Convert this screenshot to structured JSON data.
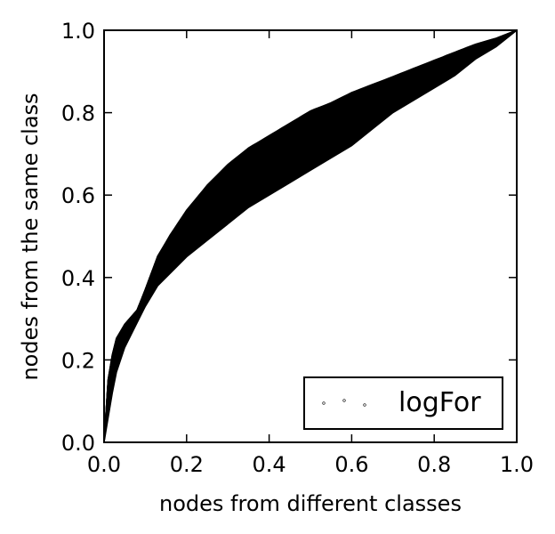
{
  "chart_data": {
    "type": "scatter",
    "title": "",
    "xlabel": "nodes from different classes",
    "ylabel": "nodes from the same class",
    "xlim": [
      0,
      1
    ],
    "ylim": [
      0,
      1
    ],
    "xticks": [
      "0.0",
      "0.2",
      "0.4",
      "0.6",
      "0.8",
      "1.0"
    ],
    "yticks": [
      "0.0",
      "0.2",
      "0.4",
      "0.6",
      "0.8",
      "1.0"
    ],
    "grid": false,
    "legend": {
      "placement": "lower-right",
      "entries": [
        "logFor"
      ]
    },
    "colors": {
      "series": "#000000",
      "axes": "#000000",
      "background": "#ffffff"
    },
    "series": [
      {
        "name": "logFor",
        "marker": "small-circle",
        "band_upper": [
          [
            0,
            0
          ],
          [
            0.01,
            0.15
          ],
          [
            0.02,
            0.21
          ],
          [
            0.03,
            0.25
          ],
          [
            0.05,
            0.285
          ],
          [
            0.08,
            0.32
          ],
          [
            0.1,
            0.37
          ],
          [
            0.13,
            0.45
          ],
          [
            0.16,
            0.5
          ],
          [
            0.2,
            0.56
          ],
          [
            0.25,
            0.62
          ],
          [
            0.3,
            0.67
          ],
          [
            0.35,
            0.71
          ],
          [
            0.4,
            0.74
          ],
          [
            0.45,
            0.77
          ],
          [
            0.5,
            0.8
          ],
          [
            0.55,
            0.82
          ],
          [
            0.6,
            0.845
          ],
          [
            0.65,
            0.865
          ],
          [
            0.7,
            0.885
          ],
          [
            0.75,
            0.905
          ],
          [
            0.8,
            0.925
          ],
          [
            0.85,
            0.945
          ],
          [
            0.9,
            0.965
          ],
          [
            0.95,
            0.98
          ],
          [
            1,
            1
          ]
        ],
        "band_lower": [
          [
            0,
            0
          ],
          [
            0.01,
            0.06
          ],
          [
            0.02,
            0.12
          ],
          [
            0.03,
            0.17
          ],
          [
            0.05,
            0.23
          ],
          [
            0.08,
            0.29
          ],
          [
            0.1,
            0.33
          ],
          [
            0.13,
            0.38
          ],
          [
            0.16,
            0.41
          ],
          [
            0.2,
            0.45
          ],
          [
            0.25,
            0.49
          ],
          [
            0.3,
            0.53
          ],
          [
            0.35,
            0.57
          ],
          [
            0.4,
            0.6
          ],
          [
            0.45,
            0.63
          ],
          [
            0.5,
            0.66
          ],
          [
            0.55,
            0.69
          ],
          [
            0.6,
            0.72
          ],
          [
            0.65,
            0.76
          ],
          [
            0.7,
            0.8
          ],
          [
            0.75,
            0.83
          ],
          [
            0.8,
            0.86
          ],
          [
            0.85,
            0.89
          ],
          [
            0.9,
            0.93
          ],
          [
            0.95,
            0.96
          ],
          [
            1,
            1
          ]
        ]
      }
    ]
  }
}
